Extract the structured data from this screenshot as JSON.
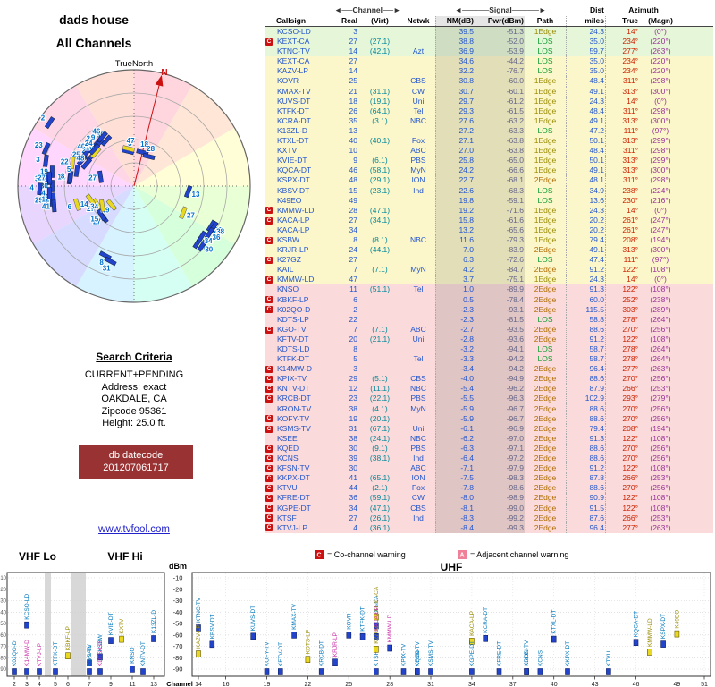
{
  "radar": {
    "title1": "dads house",
    "title2": "All Channels",
    "north_label": "TrueNorth",
    "n_label": "N"
  },
  "criteria": {
    "heading": "Search Criteria",
    "lines": [
      "CURRENT+PENDING",
      "Address: exact",
      "OAKDALE, CA",
      "Zipcode 95361",
      "Height: 25.0 ft."
    ],
    "datecode_label": "db datecode",
    "datecode": "201207061717",
    "site": "www.tvfool.com"
  },
  "table": {
    "ch_group": "◄──Channel──►",
    "sig_group": "◄─────Signal─────►",
    "dist_group": "Dist",
    "az_group": "Azimuth",
    "col": {
      "callsign": "Callsign",
      "real": "Real",
      "virt": "(Virt)",
      "netwk": "Netwk",
      "nm": "NM(dB)",
      "pwr": "Pwr(dBm)",
      "path": "Path",
      "miles": "miles",
      "true": "True",
      "magn": "(Magn)"
    }
  },
  "legend": {
    "c_label": "C",
    "c_text": "= Co-channel warning",
    "a_label": "A",
    "a_text": "= Adjacent channel warning"
  },
  "spectrum": {
    "vhf_lo": "VHF Lo",
    "vhf_hi": "VHF Hi",
    "uhf": "UHF",
    "dbm": "dBm",
    "channel": "Channel",
    "dbm_ticks": [
      -10,
      -20,
      -30,
      -40,
      -50,
      -60,
      -70,
      -80,
      -90
    ],
    "vhf_ticks": [
      2,
      3,
      4,
      5,
      6,
      7,
      9,
      11,
      13
    ],
    "uhf_ticks": [
      14,
      16,
      19,
      22,
      25,
      28,
      31,
      34,
      37,
      40,
      43,
      46,
      49,
      51
    ]
  },
  "colors": {
    "warning_red": "#cc1111",
    "warning_pink": "#f08098",
    "row_strong": "#e6f6d8",
    "row_medium": "#fcf7cb",
    "row_weak": "#fadada",
    "true_azimuth": "#cc2200",
    "magnetic_azimuth": "#993399",
    "analog_bar": "#e8d820",
    "digital_bar": "#2244cc",
    "datecode_bg": "#993333",
    "link": "#2222cc"
  },
  "chart_data": {
    "type": "table",
    "title": "dads house - All Channels",
    "units": {
      "nm": "dB",
      "pwr": "dBm",
      "dist": "miles",
      "azimuth": "degrees true (magnetic)"
    },
    "columns": [
      "Callsign",
      "Real",
      "(Virt)",
      "Netwk",
      "NM(dB)",
      "Pwr(dBm)",
      "Path",
      "miles",
      "True",
      "(Magn)"
    ],
    "rows": [
      {
        "w": "",
        "cs": "KCSO-LD",
        "re": 3,
        "vi": "",
        "nw": "",
        "nm": 39.5,
        "pw": -51.3,
        "pa": "1Edge",
        "mi": 24.3,
        "tr": 14,
        "mg": 0
      },
      {
        "w": "C",
        "cs": "KEXT-CA",
        "re": 27,
        "vi": "(27.1)",
        "nw": "",
        "nm": 38.8,
        "pw": -52.0,
        "pa": "LOS",
        "mi": 35.0,
        "tr": 234,
        "mg": 220
      },
      {
        "w": "",
        "cs": "KTNC-TV",
        "re": 14,
        "vi": "(42.1)",
        "nw": "Azt",
        "nm": 36.9,
        "pw": -53.9,
        "pa": "LOS",
        "mi": 59.7,
        "tr": 277,
        "mg": 263
      },
      {
        "w": "",
        "cs": "KEXT-CA",
        "re": 27,
        "vi": "",
        "nw": "",
        "nm": 34.6,
        "pw": -44.2,
        "pa": "LOS",
        "mi": 35.0,
        "tr": 234,
        "mg": 220,
        "an": true
      },
      {
        "w": "",
        "cs": "KAZV-LP",
        "re": 14,
        "vi": "",
        "nw": "",
        "nm": 32.2,
        "pw": -76.7,
        "pa": "LOS",
        "mi": 35.0,
        "tr": 234,
        "mg": 220,
        "an": true,
        "pk": true
      },
      {
        "w": "",
        "cs": "KOVR",
        "re": 25,
        "vi": "",
        "nw": "CBS",
        "nm": 30.8,
        "pw": -60.0,
        "pa": "1Edge",
        "mi": 48.4,
        "tr": 311,
        "mg": 298
      },
      {
        "w": "",
        "cs": "KMAX-TV",
        "re": 21,
        "vi": "(31.1)",
        "nw": "CW",
        "nm": 30.7,
        "pw": -60.1,
        "pa": "1Edge",
        "mi": 49.1,
        "tr": 313,
        "mg": 300
      },
      {
        "w": "",
        "cs": "KUVS-DT",
        "re": 18,
        "vi": "(19.1)",
        "nw": "Uni",
        "nm": 29.7,
        "pw": -61.2,
        "pa": "1Edge",
        "mi": 24.3,
        "tr": 14,
        "mg": 0
      },
      {
        "w": "",
        "cs": "KTFK-DT",
        "re": 26,
        "vi": "(64.1)",
        "nw": "Tel",
        "nm": 29.3,
        "pw": -61.5,
        "pa": "1Edge",
        "mi": 48.4,
        "tr": 311,
        "mg": 298
      },
      {
        "w": "",
        "cs": "KCRA-DT",
        "re": 35,
        "vi": "(3.1)",
        "nw": "NBC",
        "nm": 27.6,
        "pw": -63.2,
        "pa": "1Edge",
        "mi": 49.1,
        "tr": 313,
        "mg": 300
      },
      {
        "w": "",
        "cs": "K13ZL-D",
        "re": 13,
        "vi": "",
        "nw": "",
        "nm": 27.2,
        "pw": -63.3,
        "pa": "LOS",
        "mi": 47.2,
        "tr": 111,
        "mg": 97
      },
      {
        "w": "",
        "cs": "KTXL-DT",
        "re": 40,
        "vi": "(40.1)",
        "nw": "Fox",
        "nm": 27.1,
        "pw": -63.8,
        "pa": "1Edge",
        "mi": 50.1,
        "tr": 313,
        "mg": 299
      },
      {
        "w": "",
        "cs": "KXTV",
        "re": 10,
        "vi": "",
        "nw": "ABC",
        "nm": 27.0,
        "pw": -63.8,
        "pa": "1Edge",
        "mi": 48.4,
        "tr": 311,
        "mg": 298,
        "an": true
      },
      {
        "w": "",
        "cs": "KVIE-DT",
        "re": 9,
        "vi": "(6.1)",
        "nw": "PBS",
        "nm": 25.8,
        "pw": -65.0,
        "pa": "1Edge",
        "mi": 50.1,
        "tr": 313,
        "mg": 299
      },
      {
        "w": "",
        "cs": "KQCA-DT",
        "re": 46,
        "vi": "(58.1)",
        "nw": "MyN",
        "nm": 24.2,
        "pw": -66.6,
        "pa": "1Edge",
        "mi": 49.1,
        "tr": 313,
        "mg": 300
      },
      {
        "w": "",
        "cs": "KSPX-DT",
        "re": 48,
        "vi": "(29.1)",
        "nw": "ION",
        "nm": 22.7,
        "pw": -68.1,
        "pa": "2Edge",
        "mi": 48.1,
        "tr": 311,
        "mg": 298
      },
      {
        "w": "",
        "cs": "KBSV-DT",
        "re": 15,
        "vi": "(23.1)",
        "nw": "Ind",
        "nm": 22.6,
        "pw": -68.3,
        "pa": "LOS",
        "mi": 34.9,
        "tr": 238,
        "mg": 224
      },
      {
        "w": "",
        "cs": "K49EO",
        "re": 49,
        "vi": "",
        "nw": "",
        "nm": 19.8,
        "pw": -59.1,
        "pa": "LOS",
        "mi": 13.6,
        "tr": 230,
        "mg": 216,
        "an": true
      },
      {
        "w": "C",
        "cs": "KMMW-LD",
        "re": 28,
        "vi": "(47.1)",
        "nw": "",
        "nm": 19.2,
        "pw": -71.6,
        "pa": "1Edge",
        "mi": 24.3,
        "tr": 14,
        "mg": 0,
        "pk": true
      },
      {
        "w": "C",
        "cs": "KACA-LP",
        "re": 27,
        "vi": "(34.1)",
        "nw": "",
        "nm": 15.8,
        "pw": -61.6,
        "pa": "1Edge",
        "mi": 20.2,
        "tr": 261,
        "mg": 247,
        "pk": true
      },
      {
        "w": "",
        "cs": "KACA-LP",
        "re": 34,
        "vi": "",
        "nw": "",
        "nm": 13.2,
        "pw": -65.6,
        "pa": "1Edge",
        "mi": 20.2,
        "tr": 261,
        "mg": 247,
        "an": true,
        "pk": true
      },
      {
        "w": "C",
        "cs": "KSBW",
        "re": 8,
        "vi": "(8.1)",
        "nw": "NBC",
        "nm": 11.6,
        "pw": -79.3,
        "pa": "1Edge",
        "mi": 79.4,
        "tr": 208,
        "mg": 194
      },
      {
        "w": "",
        "cs": "KRJR-LP",
        "re": 24,
        "vi": "(44.1)",
        "nw": "",
        "nm": 7.0,
        "pw": -83.9,
        "pa": "2Edge",
        "mi": 49.1,
        "tr": 313,
        "mg": 300,
        "pk": true
      },
      {
        "w": "C",
        "cs": "K27GZ",
        "re": 27,
        "vi": "",
        "nw": "",
        "nm": 6.3,
        "pw": -72.6,
        "pa": "LOS",
        "mi": 47.4,
        "tr": 111,
        "mg": 97,
        "an": true
      },
      {
        "w": "",
        "cs": "KAIL",
        "re": 7,
        "vi": "(7.1)",
        "nw": "MyN",
        "nm": 4.2,
        "pw": -84.7,
        "pa": "2Edge",
        "mi": 91.2,
        "tr": 122,
        "mg": 108
      },
      {
        "w": "C",
        "cs": "KMMW-LD",
        "re": 47,
        "vi": "",
        "nw": "",
        "nm": 3.7,
        "pw": -75.1,
        "pa": "1Edge",
        "mi": 24.3,
        "tr": 14,
        "mg": 0,
        "an": true,
        "pk": true
      },
      {
        "w": "",
        "cs": "KNSO",
        "re": 11,
        "vi": "(51.1)",
        "nw": "Tel",
        "nm": 1.0,
        "pw": -89.9,
        "pa": "2Edge",
        "mi": 91.3,
        "tr": 122,
        "mg": 108
      },
      {
        "w": "C",
        "cs": "KBKF-LP",
        "re": 6,
        "vi": "",
        "nw": "",
        "nm": 0.5,
        "pw": -78.4,
        "pa": "2Edge",
        "mi": 60.0,
        "tr": 252,
        "mg": 238,
        "an": true,
        "pk": true
      },
      {
        "w": "C",
        "cs": "K02QO-D",
        "re": 2,
        "vi": "",
        "nw": "",
        "nm": -2.3,
        "pw": -93.1,
        "pa": "2Edge",
        "mi": 115.5,
        "tr": 303,
        "mg": 289
      },
      {
        "w": "",
        "cs": "KDTS-LP",
        "re": 22,
        "vi": "",
        "nw": "",
        "nm": -2.3,
        "pw": -81.5,
        "pa": "LOS",
        "mi": 58.8,
        "tr": 278,
        "mg": 264,
        "an": true,
        "pk": true
      },
      {
        "w": "C",
        "cs": "KGO-TV",
        "re": 7,
        "vi": "(7.1)",
        "nw": "ABC",
        "nm": -2.7,
        "pw": -93.5,
        "pa": "2Edge",
        "mi": 88.6,
        "tr": 270,
        "mg": 256
      },
      {
        "w": "",
        "cs": "KFTV-DT",
        "re": 20,
        "vi": "(21.1)",
        "nw": "Uni",
        "nm": -2.8,
        "pw": -93.6,
        "pa": "2Edge",
        "mi": 91.2,
        "tr": 122,
        "mg": 108
      },
      {
        "w": "",
        "cs": "KDTS-LD",
        "re": 8,
        "vi": "",
        "nw": "",
        "nm": -3.2,
        "pw": -94.1,
        "pa": "LOS",
        "mi": 58.7,
        "tr": 278,
        "mg": 264,
        "pk": true
      },
      {
        "w": "",
        "cs": "KTFK-DT",
        "re": 5,
        "vi": "",
        "nw": "Tel",
        "nm": -3.3,
        "pw": -94.2,
        "pa": "LOS",
        "mi": 58.7,
        "tr": 278,
        "mg": 264
      },
      {
        "w": "C",
        "cs": "K14MW-D",
        "re": 3,
        "vi": "",
        "nw": "",
        "nm": -3.4,
        "pw": -94.2,
        "pa": "2Edge",
        "mi": 96.4,
        "tr": 277,
        "mg": 263,
        "pk": true
      },
      {
        "w": "C",
        "cs": "KPIX-TV",
        "re": 29,
        "vi": "(5.1)",
        "nw": "CBS",
        "nm": -4.0,
        "pw": -94.9,
        "pa": "2Edge",
        "mi": 88.6,
        "tr": 270,
        "mg": 256
      },
      {
        "w": "C",
        "cs": "KNTV-DT",
        "re": 12,
        "vi": "(11.1)",
        "nw": "NBC",
        "nm": -5.4,
        "pw": -96.2,
        "pa": "2Edge",
        "mi": 87.9,
        "tr": 266,
        "mg": 253
      },
      {
        "w": "C",
        "cs": "KRCB-DT",
        "re": 23,
        "vi": "(22.1)",
        "nw": "PBS",
        "nm": -5.5,
        "pw": -96.3,
        "pa": "2Edge",
        "mi": 102.9,
        "tr": 293,
        "mg": 279
      },
      {
        "w": "",
        "cs": "KRON-TV",
        "re": 38,
        "vi": "(4.1)",
        "nw": "MyN",
        "nm": -5.9,
        "pw": -96.7,
        "pa": "2Edge",
        "mi": 88.6,
        "tr": 270,
        "mg": 256
      },
      {
        "w": "C",
        "cs": "KOFY-TV",
        "re": 19,
        "vi": "(20.1)",
        "nw": "",
        "nm": -5.9,
        "pw": -96.7,
        "pa": "2Edge",
        "mi": 88.6,
        "tr": 270,
        "mg": 256
      },
      {
        "w": "C",
        "cs": "KSMS-TV",
        "re": 31,
        "vi": "(67.1)",
        "nw": "Uni",
        "nm": -6.1,
        "pw": -96.9,
        "pa": "2Edge",
        "mi": 79.4,
        "tr": 208,
        "mg": 194
      },
      {
        "w": "",
        "cs": "KSEE",
        "re": 38,
        "vi": "(24.1)",
        "nw": "NBC",
        "nm": -6.2,
        "pw": -97.0,
        "pa": "2Edge",
        "mi": 91.3,
        "tr": 122,
        "mg": 108
      },
      {
        "w": "C",
        "cs": "KQED",
        "re": 30,
        "vi": "(9.1)",
        "nw": "PBS",
        "nm": -6.3,
        "pw": -97.1,
        "pa": "2Edge",
        "mi": 88.6,
        "tr": 270,
        "mg": 256
      },
      {
        "w": "C",
        "cs": "KCNS",
        "re": 39,
        "vi": "(38.1)",
        "nw": "Ind",
        "nm": -6.4,
        "pw": -97.2,
        "pa": "2Edge",
        "mi": 88.6,
        "tr": 270,
        "mg": 256
      },
      {
        "w": "C",
        "cs": "KFSN-TV",
        "re": 30,
        "vi": "",
        "nw": "ABC",
        "nm": -7.1,
        "pw": -97.9,
        "pa": "2Edge",
        "mi": 91.2,
        "tr": 122,
        "mg": 108
      },
      {
        "w": "C",
        "cs": "KKPX-DT",
        "re": 41,
        "vi": "(65.1)",
        "nw": "ION",
        "nm": -7.5,
        "pw": -98.3,
        "pa": "2Edge",
        "mi": 87.8,
        "tr": 266,
        "mg": 253
      },
      {
        "w": "C",
        "cs": "KTVU",
        "re": 44,
        "vi": "(2.1)",
        "nw": "Fox",
        "nm": -7.8,
        "pw": -98.6,
        "pa": "2Edge",
        "mi": 88.6,
        "tr": 270,
        "mg": 256
      },
      {
        "w": "C",
        "cs": "KFRE-DT",
        "re": 36,
        "vi": "(59.1)",
        "nw": "CW",
        "nm": -8.0,
        "pw": -98.9,
        "pa": "2Edge",
        "mi": 90.9,
        "tr": 122,
        "mg": 108
      },
      {
        "w": "C",
        "cs": "KGPE-DT",
        "re": 34,
        "vi": "(47.1)",
        "nw": "CBS",
        "nm": -8.1,
        "pw": -99.0,
        "pa": "2Edge",
        "mi": 91.5,
        "tr": 122,
        "mg": 108
      },
      {
        "w": "C",
        "cs": "KTSF",
        "re": 27,
        "vi": "(26.1)",
        "nw": "Ind",
        "nm": -8.3,
        "pw": -99.2,
        "pa": "2Edge",
        "mi": 87.6,
        "tr": 266,
        "mg": 253
      },
      {
        "w": "C",
        "cs": "KTVJ-LP",
        "re": 4,
        "vi": "(36.1)",
        "nw": "",
        "nm": -8.4,
        "pw": -99.3,
        "pa": "2Edge",
        "mi": 96.4,
        "tr": 277,
        "mg": 263,
        "pk": true
      }
    ]
  }
}
